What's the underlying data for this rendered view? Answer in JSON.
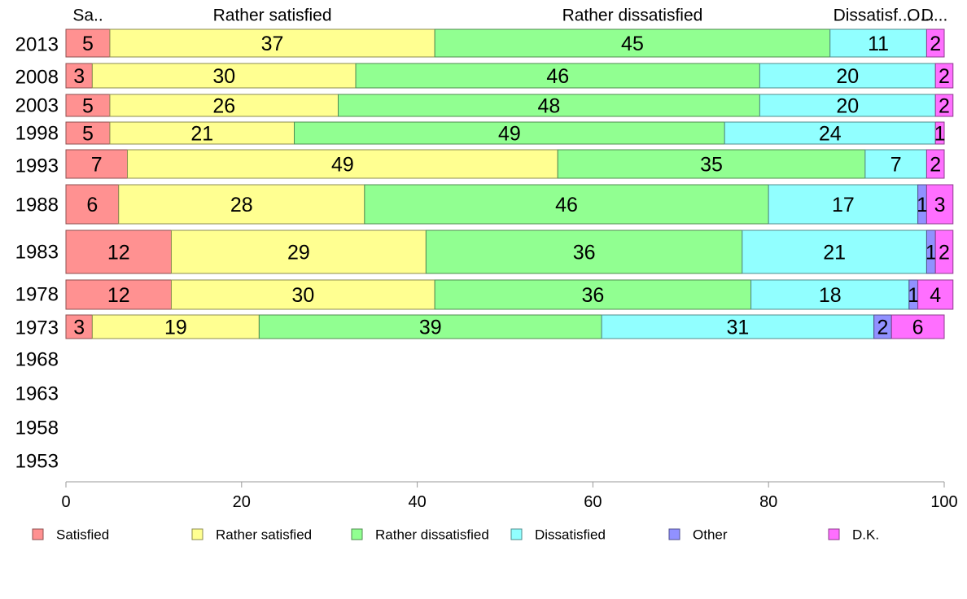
{
  "chart_data": {
    "type": "bar",
    "orientation": "horizontal",
    "stacked": true,
    "xlim": [
      0,
      100
    ],
    "x_ticks": [
      0,
      20,
      40,
      60,
      80,
      100
    ],
    "grid": false,
    "legend_placement": "bottom",
    "categories": [
      "2013",
      "2008",
      "2003",
      "1998",
      "1993",
      "1988",
      "1983",
      "1978",
      "1973",
      "1968",
      "1963",
      "1958",
      "1953"
    ],
    "header_labels": [
      "Sa..",
      "Rather satisfied",
      "Rather dissatisfied",
      "Dissatisf...",
      "O...",
      "D..."
    ],
    "series": [
      {
        "name": "Satisfied",
        "color": "#ff9191",
        "values": [
          5,
          3,
          5,
          5,
          7,
          6,
          12,
          12,
          3,
          null,
          null,
          null,
          null
        ]
      },
      {
        "name": "Rather satisfied",
        "color": "#ffff91",
        "values": [
          37,
          30,
          26,
          21,
          49,
          28,
          29,
          30,
          19,
          null,
          null,
          null,
          null
        ]
      },
      {
        "name": "Rather dissatisfied",
        "color": "#91ff91",
        "values": [
          45,
          46,
          48,
          49,
          35,
          46,
          36,
          36,
          39,
          null,
          null,
          null,
          null
        ]
      },
      {
        "name": "Dissatisfied",
        "color": "#91ffff",
        "values": [
          11,
          20,
          20,
          24,
          7,
          17,
          21,
          18,
          31,
          null,
          null,
          null,
          null
        ]
      },
      {
        "name": "Other",
        "color": "#9191ff",
        "values": [
          0,
          0,
          0,
          0,
          0,
          1,
          1,
          1,
          2,
          null,
          null,
          null,
          null
        ]
      },
      {
        "name": "D.K.",
        "color": "#ff6fff",
        "values": [
          2,
          2,
          2,
          1,
          2,
          3,
          2,
          4,
          6,
          null,
          null,
          null,
          null
        ]
      }
    ]
  }
}
